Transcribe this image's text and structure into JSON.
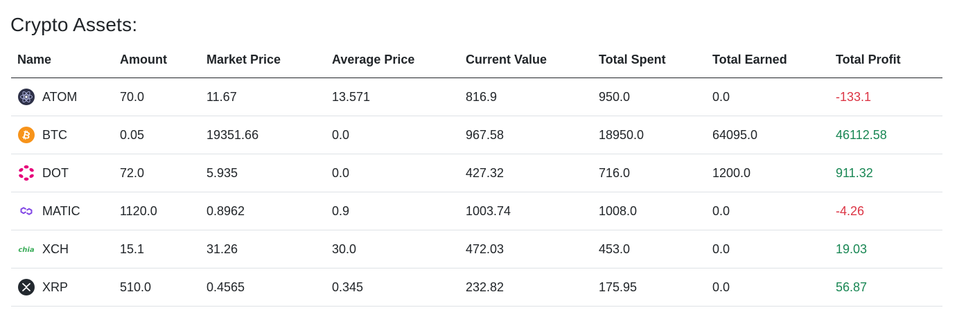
{
  "page": {
    "title": "Crypto Assets:"
  },
  "colors": {
    "profit_positive": "#198754",
    "profit_negative": "#dc3545"
  },
  "table": {
    "headers": [
      "Name",
      "Amount",
      "Market Price",
      "Average Price",
      "Current Value",
      "Total Spent",
      "Total Earned",
      "Total Profit"
    ],
    "rows": [
      {
        "icon": "atom-cosmos-icon",
        "name": "ATOM",
        "amount": "70.0",
        "market_price": "11.67",
        "average_price": "13.571",
        "current_value": "816.9",
        "total_spent": "950.0",
        "total_earned": "0.0",
        "total_profit": "-133.1",
        "profit_sign": "negative"
      },
      {
        "icon": "btc-bitcoin-icon",
        "name": "BTC",
        "amount": "0.05",
        "market_price": "19351.66",
        "average_price": "0.0",
        "current_value": "967.58",
        "total_spent": "18950.0",
        "total_earned": "64095.0",
        "total_profit": "46112.58",
        "profit_sign": "positive"
      },
      {
        "icon": "dot-polkadot-icon",
        "name": "DOT",
        "amount": "72.0",
        "market_price": "5.935",
        "average_price": "0.0",
        "current_value": "427.32",
        "total_spent": "716.0",
        "total_earned": "1200.0",
        "total_profit": "911.32",
        "profit_sign": "positive"
      },
      {
        "icon": "matic-polygon-icon",
        "name": "MATIC",
        "amount": "1120.0",
        "market_price": "0.8962",
        "average_price": "0.9",
        "current_value": "1003.74",
        "total_spent": "1008.0",
        "total_earned": "0.0",
        "total_profit": "-4.26",
        "profit_sign": "negative"
      },
      {
        "icon": "xch-chia-icon",
        "name": "XCH",
        "amount": "15.1",
        "market_price": "31.26",
        "average_price": "30.0",
        "current_value": "472.03",
        "total_spent": "453.0",
        "total_earned": "0.0",
        "total_profit": "19.03",
        "profit_sign": "positive"
      },
      {
        "icon": "xrp-ripple-icon",
        "name": "XRP",
        "amount": "510.0",
        "market_price": "0.4565",
        "average_price": "0.345",
        "current_value": "232.82",
        "total_spent": "175.95",
        "total_earned": "0.0",
        "total_profit": "56.87",
        "profit_sign": "positive"
      }
    ]
  },
  "icon_text": {
    "xch_logo_word": "chia"
  }
}
